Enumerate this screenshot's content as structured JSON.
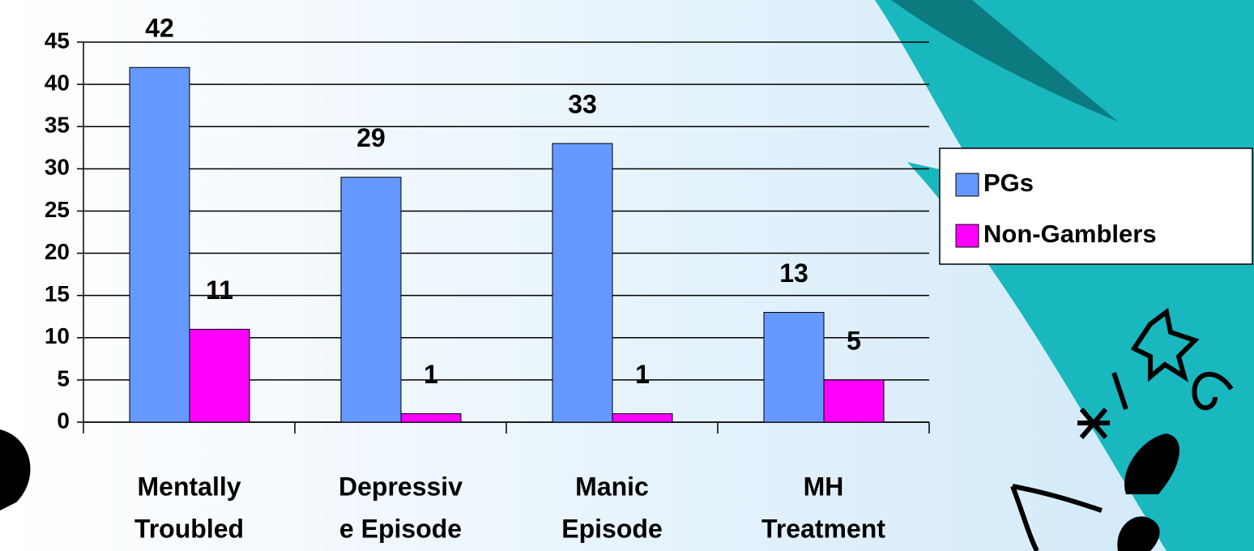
{
  "chart_data": {
    "type": "bar",
    "categories": [
      [
        "Mentally",
        "Troubled"
      ],
      [
        "Depressiv",
        "e Episode"
      ],
      [
        "Manic",
        "Episode"
      ],
      [
        "MH",
        "Treatment"
      ]
    ],
    "series": [
      {
        "name": "PGs",
        "color": "#6699ff",
        "values": [
          42,
          29,
          33,
          13
        ]
      },
      {
        "name": "Non-Gamblers",
        "color": "#ff00ff",
        "values": [
          11,
          1,
          1,
          5
        ]
      }
    ],
    "ylim": [
      0,
      45
    ],
    "yticks": [
      0,
      5,
      10,
      15,
      20,
      25,
      30,
      35,
      40,
      45
    ],
    "grid": true,
    "legend": "right"
  }
}
